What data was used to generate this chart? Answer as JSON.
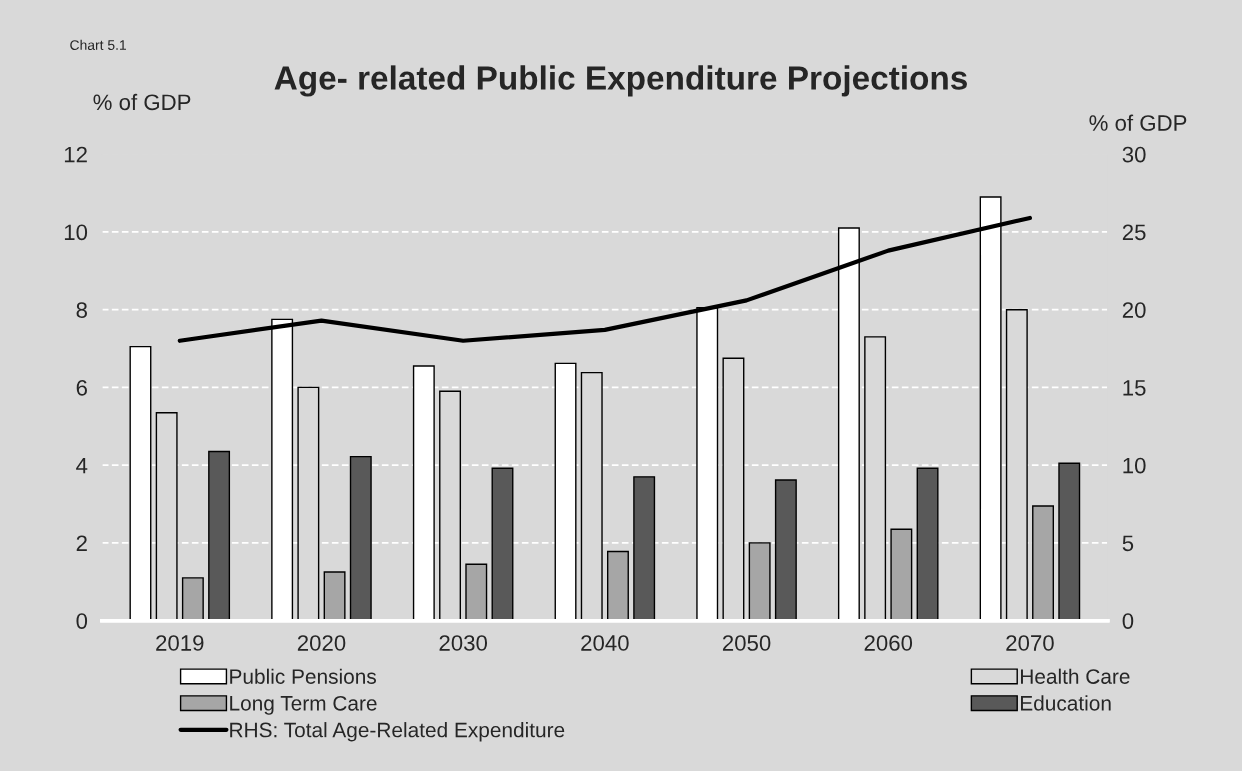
{
  "chart_data": {
    "type": "bar",
    "title": "Age- related Public Expenditure Projections",
    "ylabel": "% of GDP",
    "y2label": "% of GDP",
    "annotations": [
      "Chart 5.1"
    ],
    "categories": [
      "2019",
      "2020",
      "2030",
      "2040",
      "2050",
      "2060",
      "2070"
    ],
    "series": [
      {
        "name": "Public Pensions",
        "color": "#ffffff",
        "values": [
          7.05,
          7.75,
          6.55,
          6.62,
          8.05,
          10.1,
          10.9
        ]
      },
      {
        "name": "Health Care",
        "color": "#d9d9d9",
        "values": [
          5.35,
          6.0,
          5.9,
          6.38,
          6.75,
          7.3,
          8.0
        ]
      },
      {
        "name": "Long Term Care",
        "color": "#a6a6a6",
        "values": [
          1.1,
          1.25,
          1.45,
          1.78,
          2.0,
          2.35,
          2.95
        ]
      },
      {
        "name": "Education",
        "color": "#595959",
        "values": [
          4.35,
          4.22,
          3.92,
          3.7,
          3.62,
          3.92,
          4.05
        ]
      },
      {
        "name": "RHS: Total Age-Related Expenditure",
        "type": "line",
        "axis": "y2",
        "color": "#000000",
        "values": [
          18.0,
          19.3,
          18.0,
          18.7,
          20.6,
          23.8,
          25.9
        ]
      }
    ],
    "ylim": [
      0,
      12
    ],
    "yticks": [
      0,
      2,
      4,
      6,
      8,
      10,
      12
    ],
    "y2lim": [
      0,
      30
    ],
    "y2ticks": [
      0,
      5,
      10,
      15,
      20,
      25,
      30
    ],
    "grid": "y",
    "legend": "bottom",
    "marker": "none",
    "line_style": "solid"
  }
}
